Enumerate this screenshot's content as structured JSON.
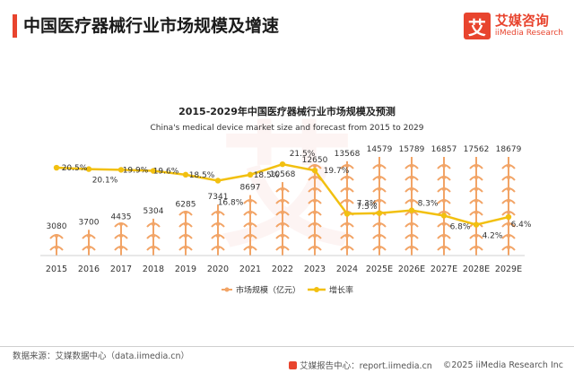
{
  "header": {
    "title": "中国医疗器械行业市场规模及增速",
    "brand_mark": "艾",
    "brand_cn": "艾媒咨询",
    "brand_en": "iiMedia Research"
  },
  "colors": {
    "accent": "#e8442e",
    "bar": "#f2a466",
    "line": "#f2c010",
    "text": "#333333"
  },
  "chart_data": {
    "type": "bar",
    "title": "2015-2029年中国医疗器械行业市场规模及预测",
    "subtitle": "China's medical device market size and forecast from 2015 to 2029",
    "categories": [
      "2015",
      "2016",
      "2017",
      "2018",
      "2019",
      "2020",
      "2021",
      "2022",
      "2023",
      "2024",
      "2025E",
      "2026E",
      "2027E",
      "2028E",
      "2029E"
    ],
    "series": [
      {
        "name": "市场规模（亿元）",
        "type": "bar",
        "values": [
          3080,
          3700,
          4435,
          5304,
          6285,
          7341,
          8697,
          10568,
          12650,
          13568,
          14579,
          15789,
          16857,
          17562,
          18679
        ],
        "labels": [
          "3080",
          "3700",
          "4435",
          "5304",
          "6285",
          "7341",
          "8697",
          "10568",
          "12650",
          "13568",
          "14579",
          "15789",
          "16857",
          "17562",
          "18679"
        ]
      },
      {
        "name": "增长率",
        "type": "line",
        "axis": "secondary",
        "values": [
          20.5,
          20.1,
          19.9,
          19.6,
          18.5,
          16.8,
          18.5,
          21.5,
          19.7,
          7.3,
          7.5,
          8.3,
          6.8,
          4.2,
          6.4
        ],
        "labels": [
          "20.5%",
          "20.1%",
          "19.9%",
          "19.6%",
          "18.5%",
          "16.8%",
          "18.5%",
          "21.5%",
          "19.7%",
          "7.3%",
          "7.5%",
          "8.3%",
          "6.8%",
          "4.2%",
          "6.4%"
        ]
      }
    ],
    "ylim": [
      0,
      20000
    ],
    "y2lim": [
      0,
      30
    ],
    "grid": false,
    "legend": "bottom"
  },
  "footer": {
    "source": "数据来源：艾媒数据中心（data.iimedia.cn）",
    "report": "艾媒报告中心：report.iimedia.cn",
    "copyright": "©2025  iiMedia Research  Inc"
  }
}
